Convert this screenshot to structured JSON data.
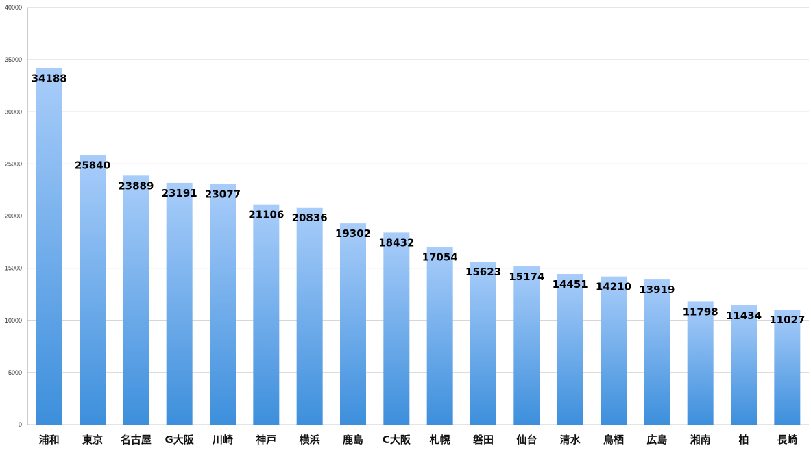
{
  "chart_data": {
    "type": "bar",
    "categories": [
      "浦和",
      "東京",
      "名古屋",
      "G大阪",
      "川崎",
      "神戸",
      "横浜",
      "鹿島",
      "C大阪",
      "札幌",
      "磐田",
      "仙台",
      "清水",
      "鳥栖",
      "広島",
      "湘南",
      "柏",
      "長崎"
    ],
    "values": [
      34188,
      25840,
      23889,
      23191,
      23077,
      21106,
      20836,
      19302,
      18432,
      17054,
      15623,
      15174,
      14451,
      14210,
      13919,
      11798,
      11434,
      11027
    ],
    "data_labels": [
      "34188",
      "25840",
      "23889",
      "23191",
      "23077",
      "21106",
      "20836",
      "19302",
      "18432",
      "17054",
      "15623",
      "15174",
      "14451",
      "14210",
      "13919",
      "11798",
      "11434",
      "11027"
    ],
    "y_ticks": [
      "0",
      "5000",
      "10000",
      "15000",
      "20000",
      "25000",
      "30000",
      "35000",
      "40000"
    ],
    "ylim": [
      0,
      40000
    ],
    "grid": true,
    "title": "",
    "xlabel": "",
    "ylabel": "",
    "colors": {
      "bar_top": "#a9cdfa",
      "bar_bottom": "#3d8fdc",
      "grid": "#c8c8c8",
      "axis": "#999999"
    }
  }
}
